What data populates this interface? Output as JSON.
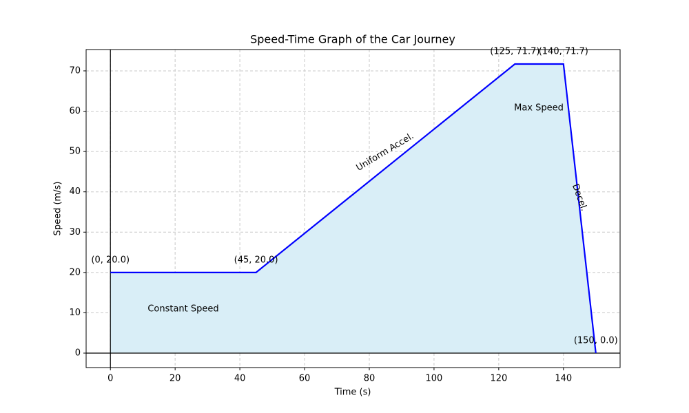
{
  "chart_data": {
    "type": "line",
    "title": "Speed-Time Graph of the Car Journey",
    "x_label": "Time (s)",
    "y_label": "Speed (m/s)",
    "x": [
      0,
      45,
      125,
      140,
      150
    ],
    "series": [
      {
        "color": "#0000ff",
        "fill_color": "#d9eef7",
        "values": [
          20,
          20,
          71.7,
          71.7,
          0
        ],
        "value_labels": [
          "(0, 20.0)",
          "(45, 20.0)",
          "(125, 71.7)",
          "(140, 71.7)",
          "(150, 0.0)"
        ]
      }
    ],
    "annotations": [
      "Constant Speed",
      "Uniform Accel.",
      "Max Speed",
      "Decel."
    ],
    "xlim": [
      -7.5,
      157.5
    ],
    "ylim": [
      -3.585,
      75.285
    ],
    "xticks": [
      0,
      20,
      40,
      60,
      80,
      100,
      120,
      140
    ],
    "yticks": [
      0,
      10,
      20,
      30,
      40,
      50,
      60,
      70
    ],
    "grid": true,
    "zero_lines": true
  }
}
